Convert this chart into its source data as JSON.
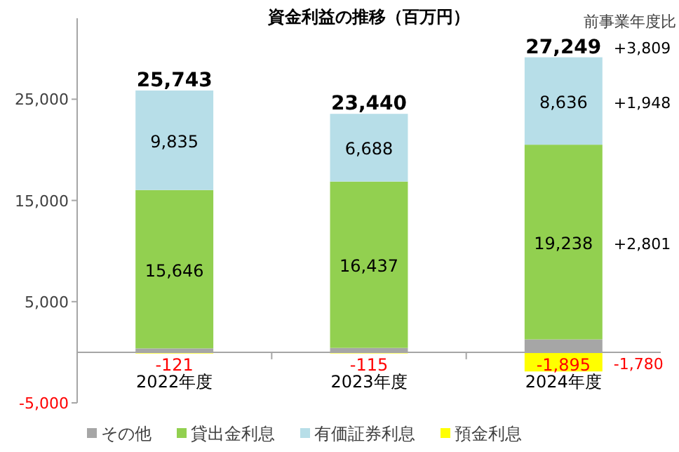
{
  "chart_data": {
    "type": "bar",
    "stacked": true,
    "title": "資金利益の推移（百万円）",
    "categories": [
      "2022年度",
      "2023年度",
      "2024年度"
    ],
    "series": [
      {
        "name": "その他",
        "color": "#a6a6a6",
        "values": [
          383,
          430,
          1270
        ]
      },
      {
        "name": "貸出金利息",
        "color": "#92d050",
        "values": [
          15646,
          16437,
          19238
        ],
        "value_labels": [
          "15,646",
          "16,437",
          "19,238"
        ]
      },
      {
        "name": "有価証券利息",
        "color": "#b7dee8",
        "values": [
          9835,
          6688,
          8636
        ],
        "value_labels": [
          "9,835",
          "6,688",
          "8,636"
        ]
      },
      {
        "name": "預金利息",
        "color": "#ffff00",
        "values": [
          -121,
          -115,
          -1895
        ],
        "value_labels": [
          "-121",
          "-115",
          "-1,895"
        ]
      }
    ],
    "totals": [
      "25,743",
      "23,440",
      "27,249"
    ],
    "ylim": [
      -5000,
      33000
    ],
    "yticks": [
      {
        "value": -5000,
        "label": "-5,000"
      },
      {
        "value": 5000,
        "label": "5,000"
      },
      {
        "value": 15000,
        "label": "15,000"
      },
      {
        "value": 25000,
        "label": "25,000"
      }
    ],
    "annotations": [
      "前事業年度比",
      "+3,809",
      "+1,948",
      "+2,801",
      "-1,780"
    ],
    "legend": "bottom",
    "grid": false
  }
}
